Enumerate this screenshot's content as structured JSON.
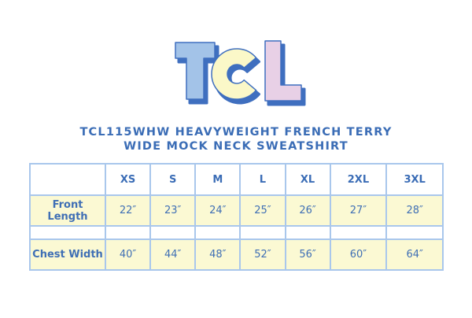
{
  "logo": {
    "letters": [
      "T",
      "C",
      "L"
    ],
    "colors": {
      "t": "#a3c3e8",
      "c": "#fbf8c8",
      "l": "#e8d0e6",
      "shadow": "#3f6fbf"
    }
  },
  "title": {
    "line1": "TCL115WHW HEAVYWEIGHT FRENCH TERRY",
    "line2": "WIDE MOCK NECK SWEATSHIRT"
  },
  "table": {
    "sizes": [
      "XS",
      "S",
      "M",
      "L",
      "XL",
      "2XL",
      "3XL"
    ],
    "rows": [
      {
        "label": "Front Length",
        "values": [
          "22″",
          "23″",
          "24″",
          "25″",
          "26″",
          "27″",
          "28″"
        ]
      },
      {
        "label": "Chest Width",
        "values": [
          "40″",
          "44″",
          "48″",
          "52″",
          "56″",
          "60″",
          "64″"
        ]
      }
    ]
  },
  "colors": {
    "text": "#3b6db6",
    "border": "#a9c7ec",
    "row_fill": "#fbf9d3"
  }
}
